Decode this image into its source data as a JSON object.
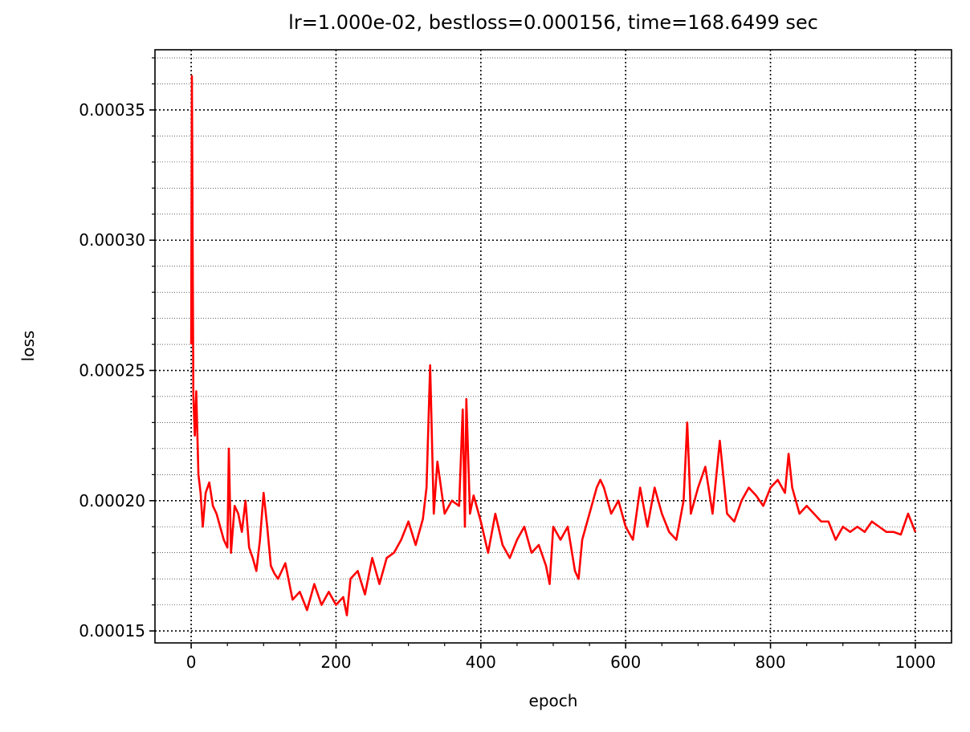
{
  "chart_data": {
    "type": "line",
    "title": "lr=1.000e-02, bestloss=0.000156, time=168.6499 sec",
    "xlabel": "epoch",
    "ylabel": "loss",
    "xlim": [
      -50,
      1050
    ],
    "ylim": [
      0.0001454,
      0.0003731
    ],
    "xticks": [
      0,
      200,
      400,
      600,
      800,
      1000
    ],
    "xminorticks": [
      50,
      100,
      150,
      250,
      300,
      350,
      450,
      500,
      550,
      650,
      700,
      750,
      850,
      900,
      950
    ],
    "yticks": [
      0.00015,
      {
        "value": 0.0002,
        "label": "0.00020"
      },
      0.00025,
      {
        "value": 0.0003,
        "label": "0.00030"
      },
      0.00035
    ],
    "yminorticks": [
      0.00016,
      0.00017,
      0.00018,
      0.00019,
      0.00021,
      0.00022,
      0.00023,
      0.00024,
      0.00026,
      0.00027,
      0.00028,
      0.00029,
      0.00031,
      0.00032,
      0.00033,
      0.00034,
      0.00036,
      0.00037
    ],
    "grid": true,
    "minor_grid": true,
    "x": [
      0,
      1,
      2,
      3,
      5,
      7,
      10,
      13,
      16,
      20,
      25,
      30,
      35,
      40,
      45,
      50,
      52,
      55,
      60,
      65,
      70,
      75,
      80,
      85,
      90,
      95,
      100,
      105,
      110,
      115,
      120,
      130,
      140,
      150,
      160,
      170,
      180,
      190,
      200,
      210,
      215,
      220,
      230,
      240,
      250,
      260,
      270,
      280,
      290,
      300,
      310,
      320,
      325,
      330,
      335,
      340,
      350,
      360,
      370,
      375,
      378,
      380,
      385,
      390,
      400,
      410,
      420,
      430,
      440,
      450,
      460,
      470,
      480,
      490,
      495,
      500,
      510,
      520,
      530,
      535,
      540,
      550,
      560,
      565,
      570,
      580,
      590,
      600,
      610,
      620,
      630,
      640,
      650,
      660,
      670,
      680,
      685,
      690,
      700,
      710,
      720,
      730,
      740,
      750,
      760,
      770,
      780,
      790,
      800,
      810,
      820,
      825,
      830,
      840,
      850,
      860,
      870,
      880,
      890,
      900,
      910,
      920,
      930,
      940,
      950,
      960,
      970,
      980,
      990,
      1000
    ],
    "series": [
      {
        "name": "loss",
        "color": "#ff0000",
        "values": [
          0.00026,
          0.000363,
          0.0003,
          0.00024,
          0.000225,
          0.000242,
          0.00021,
          0.000203,
          0.00019,
          0.000203,
          0.000207,
          0.000198,
          0.000195,
          0.00019,
          0.000185,
          0.000182,
          0.00022,
          0.00018,
          0.000198,
          0.000195,
          0.000188,
          0.0002,
          0.000182,
          0.000178,
          0.000173,
          0.000185,
          0.000203,
          0.00019,
          0.000175,
          0.000172,
          0.00017,
          0.000176,
          0.000162,
          0.000165,
          0.000158,
          0.000168,
          0.00016,
          0.000165,
          0.00016,
          0.000163,
          0.000156,
          0.00017,
          0.000173,
          0.000164,
          0.000178,
          0.000168,
          0.000178,
          0.00018,
          0.000185,
          0.000192,
          0.000183,
          0.000193,
          0.000205,
          0.000252,
          0.000195,
          0.000215,
          0.000195,
          0.0002,
          0.000198,
          0.000235,
          0.00019,
          0.000239,
          0.000195,
          0.000202,
          0.000192,
          0.00018,
          0.000195,
          0.000183,
          0.000178,
          0.000185,
          0.00019,
          0.00018,
          0.000183,
          0.000175,
          0.000168,
          0.00019,
          0.000185,
          0.00019,
          0.000173,
          0.00017,
          0.000185,
          0.000195,
          0.000205,
          0.000208,
          0.000205,
          0.000195,
          0.0002,
          0.00019,
          0.000185,
          0.000205,
          0.00019,
          0.000205,
          0.000195,
          0.000188,
          0.000185,
          0.0002,
          0.00023,
          0.000195,
          0.000205,
          0.000213,
          0.000195,
          0.000223,
          0.000195,
          0.000192,
          0.0002,
          0.000205,
          0.000202,
          0.000198,
          0.000205,
          0.000208,
          0.000203,
          0.000218,
          0.000205,
          0.000195,
          0.000198,
          0.000195,
          0.000192,
          0.000192,
          0.000185,
          0.00019,
          0.000188,
          0.00019,
          0.000188,
          0.000192,
          0.00019,
          0.000188,
          0.000188,
          0.000187,
          0.000195,
          0.000188
        ]
      }
    ]
  }
}
